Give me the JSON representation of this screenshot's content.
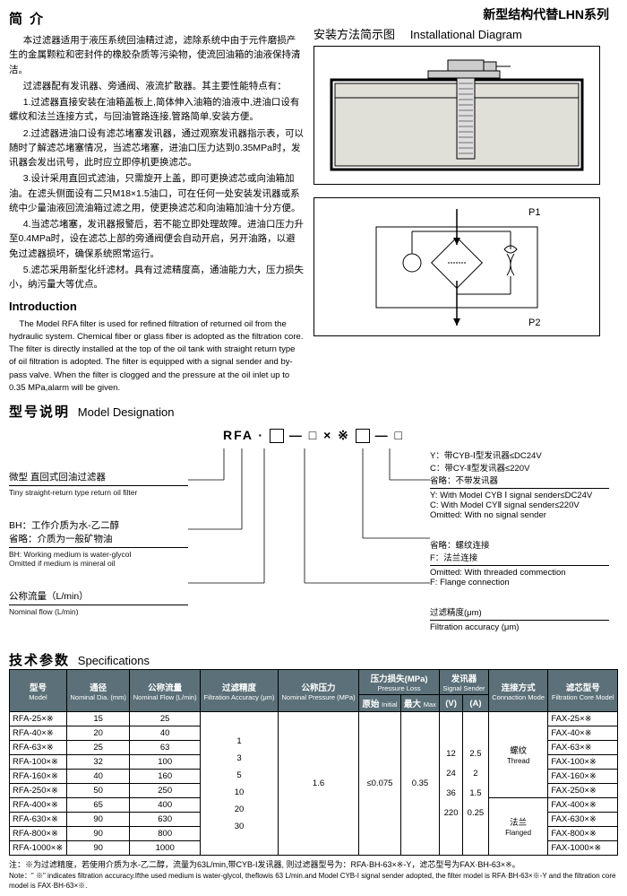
{
  "header_replace": "新型结构代替LHN系列",
  "intro_title": "简 介",
  "intro_paras": [
    "本过滤器适用于液压系统回油精过滤，滤除系统中由于元件磨损产生的金属颗粒和密封件的橡胶杂质等污染物，使流回油箱的油液保持清洁。",
    "过滤器配有发讯器、旁通阀、液流扩散器。其主要性能特点有：",
    "1.过滤器直接安装在油箱盖板上,简体伸入油箱的油液中,进油口设有螺纹和法兰连接方式，与回油管路连接,管路简单,安装方便。",
    "2.过滤器进油口设有滤芯堵塞发讯器，通过观察发讯器指示表，可以随时了解滤芯堵塞情况，当滤芯堵塞，进油口压力达到0.35MPa时，发讯器会发出讯号，此时应立即停机更换滤芯。",
    "3.设计采用直回式滤油，只需旋开上盖，即可更换滤芯或向油箱加油。在滤头侧面设有二只M18×1.5油口，可在任何一处安装发讯器或系统中少量油液回流油箱过滤之用，使更换滤芯和向油箱加油十分方便。",
    "4.当滤芯堵塞，发讯器报警后，若不能立即处理故障。进油口压力升至0.4MPa时，设在滤芯上部的旁通阀便会自动开启，另开油路，以避免过滤器损坏，确保系统照常运行。",
    "5.滤芯采用新型化纤滤材。具有过滤精度高，通油能力大，压力损失小，纳污量大等优点。"
  ],
  "intro_en_title": "Introduction",
  "intro_en": "The Model RFA filter is used for refined filtration of returned oil from the hydraulic system. Chemical fiber or glass fiber is adopted as the filtration core. The filter is directly installed at the top of the oil tank with straight return type of oil filtration is adopted. The filter is equipped with a signal sender and by-pass valve. When the filter is clogged and the pressure at the oil inlet up to 0.35 MPa,alarm will be given.",
  "install_title_cn": "安装方法简示图",
  "install_title_en": "Installational Diagram",
  "schematic_labels": {
    "p1": "P1",
    "p2": "P2"
  },
  "model_title_cn": "型号说明",
  "model_title_en": "Model Designation",
  "formula_prefix": "RFA ·",
  "formula_mid": "— □ × ※",
  "formula_suffix": "— □",
  "md_left_groups": [
    {
      "cn": "微型 直回式回油过滤器",
      "en": "Tiny straight-return type return oil filter"
    },
    {
      "cn": "BH：工作介质为水-乙二醇\n省略：介质为一般矿物油",
      "en": "BH: Working medium is water-glycol\nOmitted if medium is mineral oil"
    },
    {
      "cn": "公称流量（L/min）",
      "en": "Nominal flow (L/min)"
    }
  ],
  "md_right_groups": [
    {
      "cn": "Y：带CYB-Ⅰ型发讯器≤DC24V\nC：带CY-Ⅱ型发讯器≤220V\n省略：不带发讯器",
      "en": "Y: With Model CYB Ⅰ signal sender≤DC24V\nC: With Model CYⅡ signal sender≤220V\nOmitted: With no signal sender"
    },
    {
      "cn": "省略：螺纹连接\nF：法兰连接",
      "en": "Omitted: With threaded commection\nF: Flange connection"
    },
    {
      "cn": "过滤精度(μm)",
      "en": "Filtration accuracy (μm)"
    }
  ],
  "spec_title_cn": "技术参数",
  "spec_title_en": "Specifications",
  "table": {
    "headers": [
      {
        "cn": "型号",
        "en": "Model"
      },
      {
        "cn": "通径",
        "en": "Nominal Dia.\n(mm)"
      },
      {
        "cn": "公称流量",
        "en": "Nominal Flow\n(L/min)"
      },
      {
        "cn": "过滤精度",
        "en": "Filtration\nAccuracy\n(μm)"
      },
      {
        "cn": "公称压力",
        "en": "Nominal Pressure\n(MPa)"
      },
      {
        "cn": "压力损失(MPa)",
        "en": "Pressure Loss",
        "sub": [
          {
            "cn": "原始",
            "en": "Initial"
          },
          {
            "cn": "最大",
            "en": "Max"
          }
        ]
      },
      {
        "cn": "发讯器",
        "en": "Signal Sender",
        "sub": [
          {
            "cn": "(V)",
            "en": ""
          },
          {
            "cn": "(A)",
            "en": ""
          }
        ]
      },
      {
        "cn": "连接方式",
        "en": "Connaction Mode"
      },
      {
        "cn": "滤芯型号",
        "en": "Filtration\nCore Model"
      }
    ],
    "rows": [
      {
        "model": "RFA-25×※",
        "dia": "15",
        "flow": "25",
        "core": "FAX-25×※"
      },
      {
        "model": "RFA-40×※",
        "dia": "20",
        "flow": "40",
        "core": "FAX-40×※"
      },
      {
        "model": "RFA-63×※",
        "dia": "25",
        "flow": "63",
        "core": "FAX-63×※"
      },
      {
        "model": "RFA-100×※",
        "dia": "32",
        "flow": "100",
        "core": "FAX-100×※"
      },
      {
        "model": "RFA-160×※",
        "dia": "40",
        "flow": "160",
        "core": "FAX-160×※"
      },
      {
        "model": "RFA-250×※",
        "dia": "50",
        "flow": "250",
        "core": "FAX-250×※"
      },
      {
        "model": "RFA-400×※",
        "dia": "65",
        "flow": "400",
        "core": "FAX-400×※"
      },
      {
        "model": "RFA-630×※",
        "dia": "90",
        "flow": "630",
        "core": "FAX-630×※"
      },
      {
        "model": "RFA-800×※",
        "dia": "90",
        "flow": "800",
        "core": "FAX-800×※"
      },
      {
        "model": "RFA-1000×※",
        "dia": "90",
        "flow": "1000",
        "core": "FAX-1000×※"
      }
    ],
    "accuracy": "1\n3\n5\n10\n20\n30",
    "pressure": "1.6",
    "loss_initial": "≤0.075",
    "loss_max": "0.35",
    "signal_v": "12\n\n24\n\n36\n\n220",
    "signal_a": "2.5\n\n2\n\n1.5\n\n0.25",
    "conn_thread_cn": "螺纹",
    "conn_thread_en": "Thread",
    "conn_flange_cn": "法兰",
    "conn_flange_en": "Flanged"
  },
  "note_cn": "注：※为过滤精度，若使用介质为水-乙二醇，流量为63L/min,带CYB-I发讯器, 则过滤器型号为：RFA·BH-63×※-Y，滤芯型号为FAX·BH-63×※。",
  "note_en": "Note：\" ※\" indicates filtration accuracy.Ifthe used medium is water-glycol, theflowis 63 L/min.and Model CYB-I signal sender adopted, the filter model is RFA·BH-63×※-Y and the filtration core model is FAX·BH-63×※."
}
